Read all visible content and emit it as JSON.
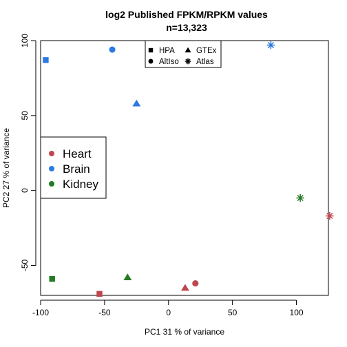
{
  "chart_data": {
    "type": "scatter",
    "title_line1": "log2  Published FPKM/RPKM values",
    "title_line2": "n=13,323",
    "xlabel": "PC1 31 % of variance",
    "ylabel": "PC2 27 % of variance",
    "xlim": [
      -100,
      125
    ],
    "ylim": [
      -70,
      100
    ],
    "x_ticks": [
      -100,
      -50,
      0,
      50,
      100
    ],
    "y_ticks": [
      -50,
      0,
      50,
      100
    ],
    "tissue_colors": {
      "Heart": "#c0454d",
      "Brain": "#2a7ae2",
      "Kidney": "#237a22"
    },
    "shape_legend": [
      {
        "label": "HPA",
        "marker": "square"
      },
      {
        "label": "GTEx",
        "marker": "triangle"
      },
      {
        "label": "AltIso",
        "marker": "circle"
      },
      {
        "label": "Atlas",
        "marker": "asterisk"
      }
    ],
    "color_legend": [
      "Heart",
      "Brain",
      "Kidney"
    ],
    "points": [
      {
        "source": "HPA",
        "tissue": "Brain",
        "x": -96,
        "y": 87
      },
      {
        "source": "AltIso",
        "tissue": "Brain",
        "x": -44,
        "y": 94
      },
      {
        "source": "GTEx",
        "tissue": "Brain",
        "x": -25,
        "y": 58
      },
      {
        "source": "Atlas",
        "tissue": "Brain",
        "x": 80,
        "y": 97
      },
      {
        "source": "Atlas",
        "tissue": "Kidney",
        "x": 103,
        "y": -5
      },
      {
        "source": "Atlas",
        "tissue": "Heart",
        "x": 126,
        "y": -17
      },
      {
        "source": "HPA",
        "tissue": "Kidney",
        "x": -91,
        "y": -59
      },
      {
        "source": "HPA",
        "tissue": "Heart",
        "x": -54,
        "y": -69
      },
      {
        "source": "GTEx",
        "tissue": "Kidney",
        "x": -32,
        "y": -58
      },
      {
        "source": "GTEx",
        "tissue": "Heart",
        "x": 13,
        "y": -65
      },
      {
        "source": "AltIso",
        "tissue": "Heart",
        "x": 21,
        "y": -62
      }
    ]
  }
}
